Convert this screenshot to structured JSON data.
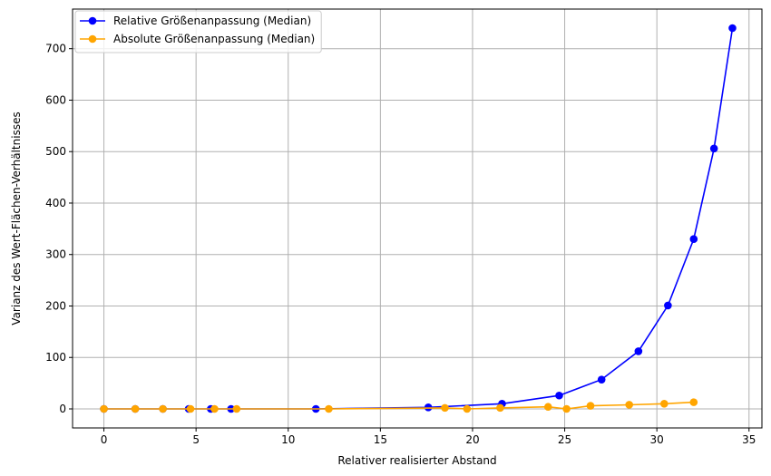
{
  "chart_data": {
    "type": "line",
    "title": "",
    "xlabel": "Relativer realisierter Abstand",
    "ylabel": "Varianz des Wert-Flächen-Verhältnisses",
    "xlim": [
      -1.7,
      35.7
    ],
    "ylim": [
      -37,
      777
    ],
    "xticks": [
      0,
      5,
      10,
      15,
      20,
      25,
      30,
      35
    ],
    "yticks": [
      0,
      100,
      200,
      300,
      400,
      500,
      600,
      700
    ],
    "grid": true,
    "legend_position": "top-left",
    "series": [
      {
        "name": "Relative Größenanpassung (Median)",
        "color": "#0000ff",
        "x": [
          0,
          1.7,
          3.2,
          4.6,
          5.8,
          6.9,
          11.5,
          17.6,
          21.6,
          24.7,
          27.0,
          29.0,
          30.6,
          32.0,
          33.1,
          34.1
        ],
        "y": [
          0,
          0,
          0,
          0,
          0,
          0,
          0,
          3,
          10,
          26,
          57,
          112,
          201,
          330,
          506,
          740
        ]
      },
      {
        "name": "Absolute Größenanpassung (Median)",
        "color": "#ffa500",
        "x": [
          0,
          1.7,
          3.2,
          4.7,
          6.0,
          7.2,
          12.2,
          18.5,
          19.7,
          21.5,
          24.1,
          25.1,
          26.4,
          28.5,
          30.4,
          32.0
        ],
        "y": [
          0,
          0,
          0,
          0,
          0,
          0,
          0,
          2,
          0,
          2,
          4,
          0,
          6,
          8,
          10,
          13
        ]
      }
    ]
  }
}
